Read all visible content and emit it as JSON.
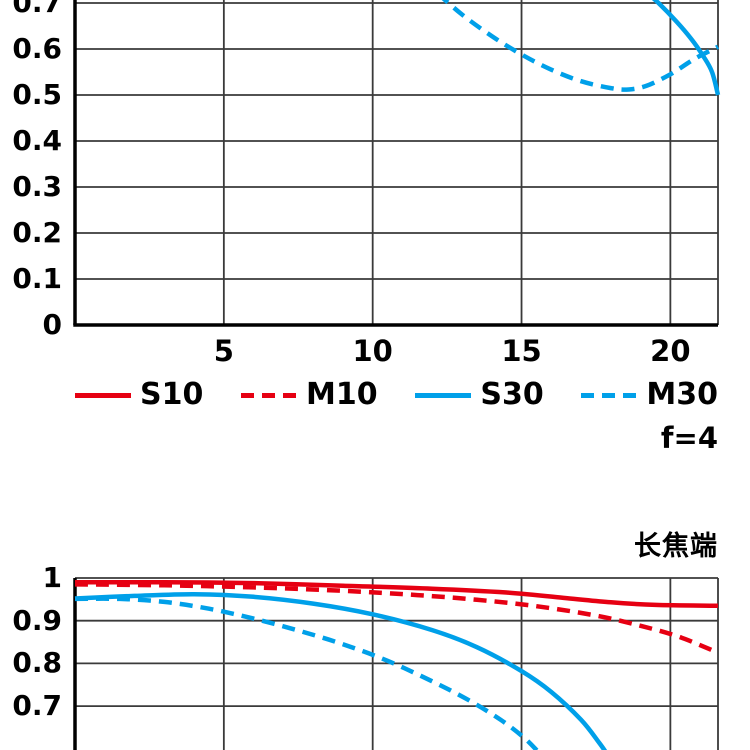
{
  "colors": {
    "red": "#e60012",
    "blue": "#00a0e9",
    "grid": "#3a3a3a",
    "axis": "#000000"
  },
  "legend": {
    "items": [
      {
        "label": "S10",
        "color": "#e60012",
        "dashed": false
      },
      {
        "label": "M10",
        "color": "#e60012",
        "dashed": true
      },
      {
        "label": "S30",
        "color": "#00a0e9",
        "dashed": false
      },
      {
        "label": "M30",
        "color": "#00a0e9",
        "dashed": true
      }
    ]
  },
  "annotations": {
    "aperture": "f=4"
  },
  "chart_data": [
    {
      "type": "line",
      "title": "",
      "xlim": [
        0,
        21.6
      ],
      "ylim": [
        0,
        1
      ],
      "grid": true,
      "legend_position": "below",
      "x_ticks": [
        {
          "v": 5,
          "label": "5"
        },
        {
          "v": 10,
          "label": "10"
        },
        {
          "v": 15,
          "label": "15"
        },
        {
          "v": 20,
          "label": "20"
        }
      ],
      "y_ticks": [
        {
          "v": 0,
          "label": "0"
        },
        {
          "v": 0.1,
          "label": "0.1"
        },
        {
          "v": 0.2,
          "label": "0.2"
        },
        {
          "v": 0.3,
          "label": "0.3"
        },
        {
          "v": 0.4,
          "label": "0.4"
        },
        {
          "v": 0.5,
          "label": "0.5"
        },
        {
          "v": 0.6,
          "label": "0.6"
        },
        {
          "v": 0.7,
          "label": "0.7"
        }
      ],
      "y_grid": [
        0,
        0.1,
        0.2,
        0.3,
        0.4,
        0.5,
        0.6,
        0.7,
        0.8,
        0.9,
        1.0
      ],
      "series": [
        {
          "name": "S30",
          "color": "#00a0e9",
          "dashed": false,
          "points": [
            [
              19.0,
              0.735
            ],
            [
              19.6,
              0.7
            ],
            [
              20.2,
              0.66
            ],
            [
              20.7,
              0.622
            ],
            [
              21.1,
              0.585
            ],
            [
              21.4,
              0.55
            ],
            [
              21.6,
              0.5
            ]
          ]
        },
        {
          "name": "M30",
          "color": "#00a0e9",
          "dashed": true,
          "points": [
            [
              12.2,
              0.72
            ],
            [
              13,
              0.675
            ],
            [
              14,
              0.628
            ],
            [
              15,
              0.588
            ],
            [
              16,
              0.555
            ],
            [
              17,
              0.53
            ],
            [
              18,
              0.515
            ],
            [
              18.6,
              0.512
            ],
            [
              19.2,
              0.52
            ],
            [
              20,
              0.545
            ],
            [
              20.8,
              0.578
            ],
            [
              21.6,
              0.605
            ]
          ]
        }
      ]
    },
    {
      "type": "line",
      "title": "长焦端",
      "xlim": [
        0,
        21.6
      ],
      "ylim": [
        0,
        1
      ],
      "grid": true,
      "x_ticks": [
        {
          "v": 5
        },
        {
          "v": 10
        },
        {
          "v": 15
        },
        {
          "v": 20
        }
      ],
      "y_ticks": [
        {
          "v": 1,
          "label": "1"
        },
        {
          "v": 0.9,
          "label": "0.9"
        },
        {
          "v": 0.8,
          "label": "0.8"
        },
        {
          "v": 0.7,
          "label": "0.7"
        }
      ],
      "y_grid": [
        0.7,
        0.8,
        0.9,
        1.0
      ],
      "series": [
        {
          "name": "S10",
          "color": "#e60012",
          "dashed": false,
          "points": [
            [
              0,
              0.99
            ],
            [
              3,
              0.99
            ],
            [
              6,
              0.988
            ],
            [
              9,
              0.982
            ],
            [
              12,
              0.975
            ],
            [
              14.5,
              0.966
            ],
            [
              16.5,
              0.953
            ],
            [
              18,
              0.943
            ],
            [
              19.5,
              0.937
            ],
            [
              21.6,
              0.935
            ]
          ]
        },
        {
          "name": "M10",
          "color": "#e60012",
          "dashed": true,
          "points": [
            [
              0,
              0.985
            ],
            [
              3,
              0.983
            ],
            [
              6,
              0.978
            ],
            [
              9,
              0.97
            ],
            [
              11.5,
              0.96
            ],
            [
              13.5,
              0.949
            ],
            [
              15.5,
              0.934
            ],
            [
              17.5,
              0.912
            ],
            [
              19,
              0.888
            ],
            [
              20.3,
              0.862
            ],
            [
              21.6,
              0.825
            ]
          ]
        },
        {
          "name": "S30",
          "color": "#00a0e9",
          "dashed": false,
          "points": [
            [
              0,
              0.952
            ],
            [
              2,
              0.958
            ],
            [
              4,
              0.962
            ],
            [
              6,
              0.956
            ],
            [
              8,
              0.94
            ],
            [
              10,
              0.915
            ],
            [
              12,
              0.878
            ],
            [
              13.5,
              0.838
            ],
            [
              15,
              0.782
            ],
            [
              16,
              0.733
            ],
            [
              17,
              0.668
            ],
            [
              17.6,
              0.615
            ],
            [
              17.9,
              0.585
            ]
          ]
        },
        {
          "name": "M30",
          "color": "#00a0e9",
          "dashed": true,
          "points": [
            [
              0,
              0.951
            ],
            [
              1.5,
              0.951
            ],
            [
              3,
              0.944
            ],
            [
              4.5,
              0.928
            ],
            [
              6,
              0.905
            ],
            [
              7.5,
              0.877
            ],
            [
              9,
              0.845
            ],
            [
              10.5,
              0.806
            ],
            [
              12,
              0.758
            ],
            [
              13.2,
              0.715
            ],
            [
              14.3,
              0.668
            ],
            [
              15.1,
              0.625
            ],
            [
              15.6,
              0.59
            ]
          ]
        }
      ]
    }
  ]
}
